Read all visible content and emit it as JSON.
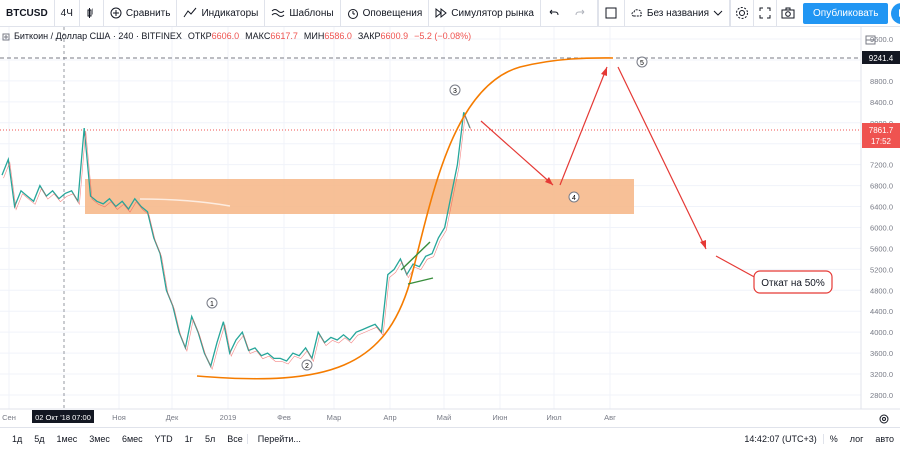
{
  "toolbar": {
    "symbol": "BTCUSD",
    "interval": "4Ч",
    "compare": "Сравнить",
    "indicators": "Индикаторы",
    "templates": "Шаблоны",
    "alerts": "Оповещения",
    "replay": "Симулятор рынка",
    "layout_name": "Без названия",
    "publish": "Опубликовать"
  },
  "legend": {
    "title": "Биткоин / Доллар США · 240 · BITFINEX",
    "open_label": "ОТКР",
    "open": "6606.0",
    "high_label": "МАКС",
    "high": "6617.7",
    "low_label": "МИН",
    "low": "6586.0",
    "close_label": "ЗАКР",
    "close": "6600.9",
    "change": "−5.2 (−0.08%)"
  },
  "chart_data": {
    "type": "line",
    "y_ticks": [
      2800,
      3200,
      3600,
      4000,
      4400,
      4800,
      5200,
      5600,
      6000,
      6400,
      6800,
      7200,
      7600,
      8000,
      8400,
      8800,
      9200,
      9600
    ],
    "ylim": [
      2500,
      9800
    ],
    "x_ticks": [
      "Сен",
      "Ноя",
      "Дек",
      "2019",
      "Фев",
      "Мар",
      "Апр",
      "Май",
      "Июн",
      "Июл",
      "Авг"
    ],
    "x_cursor_label": "02 Окт '18   07:00",
    "price_label": "7861.7",
    "countdown": "17:52",
    "target_label": "9241.4",
    "wave_labels": [
      "1",
      "2",
      "3",
      "4",
      "5"
    ],
    "callout": "Откат на 50%",
    "series": [
      {
        "values": [
          7000,
          7300,
          6400,
          6700,
          6600,
          6500,
          6800,
          6600,
          6700,
          6550,
          6650,
          6700,
          6500,
          7900,
          6600,
          6500,
          6450,
          6550,
          6400,
          6500,
          6350,
          6550,
          6400,
          6300,
          5800,
          5500,
          4800,
          4500,
          4000,
          3700,
          4300,
          4000,
          3600,
          3350,
          3800,
          4200,
          3600,
          3850,
          4000,
          3650,
          3700,
          3550,
          3600,
          3500,
          3500,
          3450,
          3600,
          3550,
          3700,
          3500,
          4000,
          3800,
          3900,
          3850,
          3950,
          3850,
          4000,
          4050,
          4100,
          4150,
          4000,
          5100,
          5200,
          5400,
          5100,
          5300,
          5250,
          5450,
          5500,
          5800,
          6000,
          6600,
          7200,
          8200,
          7900
        ]
      }
    ]
  },
  "bottombar": {
    "ranges": [
      "1д",
      "5д",
      "1мес",
      "3мес",
      "6мес",
      "YTD",
      "1г",
      "5л",
      "Все"
    ],
    "goto": "Перейти...",
    "time": "14:42:07 (UTC+3)",
    "percent": "%",
    "log": "лог",
    "auto": "авто"
  }
}
